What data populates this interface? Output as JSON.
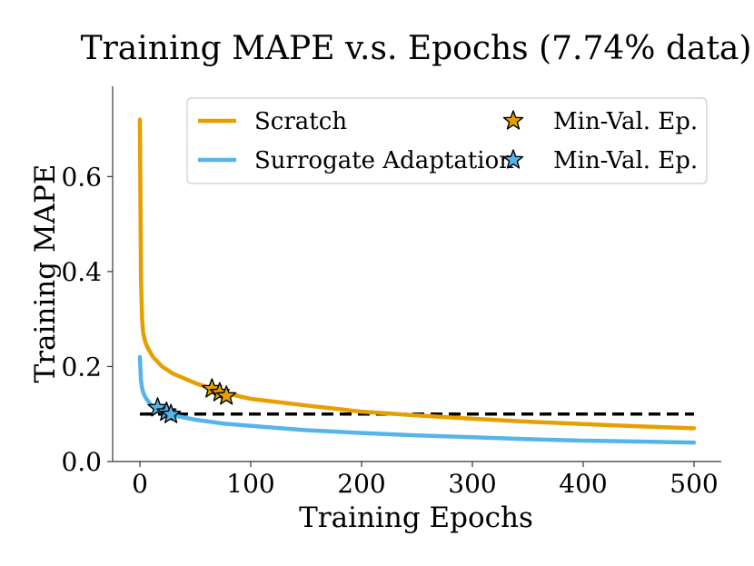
{
  "chart_data": {
    "type": "line",
    "title": "Training MAPE v.s. Epochs (7.74% data)",
    "xlabel": "Training Epochs",
    "ylabel": "Training MAPE",
    "xlim": [
      -25,
      525
    ],
    "ylim": [
      0,
      0.79
    ],
    "xticks": [
      0,
      100,
      200,
      300,
      400,
      500
    ],
    "xtick_labels": [
      "0",
      "100",
      "200",
      "300",
      "400",
      "500"
    ],
    "yticks": [
      0.0,
      0.2,
      0.4,
      0.6
    ],
    "ytick_labels": [
      "0.0",
      "0.2",
      "0.4",
      "0.6"
    ],
    "grid": false,
    "legend_position": "top-right",
    "series": [
      {
        "name": "Scratch",
        "color": "#E69F00",
        "x": [
          0,
          1,
          2,
          3,
          5,
          8,
          12,
          20,
          30,
          50,
          75,
          100,
          150,
          200,
          250,
          300,
          350,
          400,
          450,
          500
        ],
        "y": [
          0.72,
          0.38,
          0.3,
          0.27,
          0.25,
          0.235,
          0.22,
          0.2,
          0.185,
          0.165,
          0.145,
          0.132,
          0.118,
          0.105,
          0.097,
          0.09,
          0.084,
          0.079,
          0.074,
          0.07
        ]
      },
      {
        "name": "Surrogate Adaptation",
        "color": "#56B4E9",
        "x": [
          0,
          1,
          2,
          3,
          5,
          8,
          12,
          20,
          30,
          50,
          75,
          100,
          150,
          200,
          250,
          300,
          350,
          400,
          450,
          500
        ],
        "y": [
          0.22,
          0.17,
          0.155,
          0.145,
          0.135,
          0.125,
          0.115,
          0.105,
          0.097,
          0.088,
          0.08,
          0.075,
          0.066,
          0.06,
          0.055,
          0.051,
          0.047,
          0.044,
          0.042,
          0.04
        ]
      }
    ],
    "min_val_markers": [
      {
        "series": "Scratch",
        "label": "Min-Val. Ep.",
        "color": "#E69F00",
        "points": [
          {
            "x": 65,
            "y": 0.153
          },
          {
            "x": 72,
            "y": 0.145
          },
          {
            "x": 78,
            "y": 0.138
          }
        ]
      },
      {
        "series": "Surrogate Adaptation",
        "label": "Min-Val. Ep.",
        "color": "#56B4E9",
        "points": [
          {
            "x": 16,
            "y": 0.113
          },
          {
            "x": 24,
            "y": 0.104
          },
          {
            "x": 28,
            "y": 0.099
          }
        ]
      }
    ],
    "reference_line": {
      "y": 0.1,
      "style": "dashed",
      "color": "#000000"
    },
    "legend": [
      {
        "label": "Scratch",
        "kind": "line",
        "color": "#E69F00"
      },
      {
        "label": "Min-Val. Ep.",
        "kind": "star",
        "color": "#E69F00"
      },
      {
        "label": "Surrogate Adaptation",
        "kind": "line",
        "color": "#56B4E9"
      },
      {
        "label": "Min-Val. Ep.",
        "kind": "star",
        "color": "#56B4E9"
      }
    ]
  }
}
